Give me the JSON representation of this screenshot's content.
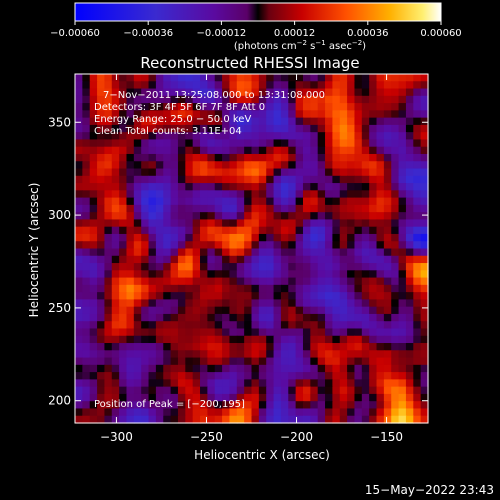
{
  "chart_data": {
    "type": "heatmap",
    "title": "Reconstructed RHESSI Image",
    "xlabel": "Heliocentric X (arcsec)",
    "ylabel": "Heliocentric Y (arcsec)",
    "xlim": [
      -323,
      -127
    ],
    "ylim": [
      188,
      376
    ],
    "xticks": [
      -300,
      -250,
      -200,
      -150
    ],
    "xtick_labels": [
      "−300",
      "−250",
      "−200",
      "−150"
    ],
    "yticks": [
      200,
      250,
      300,
      350
    ],
    "ytick_labels": [
      "200",
      "250",
      "300",
      "350"
    ],
    "colorbar": {
      "range": [
        -0.0006,
        0.0006
      ],
      "tick_values": [
        -0.0006,
        -0.00036,
        -0.00012,
        0.00012,
        0.00036,
        0.0006
      ],
      "tick_labels": [
        "−0.00060",
        "−0.00036",
        "−0.00012",
        "0.00012",
        "0.00036",
        "0.00060"
      ],
      "unit_prefix": "(photons cm",
      "unit_exp1": "−2",
      "unit_mid": " s",
      "unit_exp2": "−1",
      "unit_mid2": " asec",
      "unit_exp3": "−2",
      "unit_suffix": ")"
    },
    "annotations": {
      "time_range": "7−Nov−2011 13:25:08.000 to 13:31:08.000",
      "detectors": "Detectors: 3F 4F 5F 6F 7F 8F Att 0",
      "energy": "Energy Range: 25.0 − 50.0 keV",
      "clean": "Clean     Total counts: 3.11E+04",
      "peak": "Position of Peak = [−200,195]"
    },
    "peak_position": [
      -200,
      195
    ],
    "grid": false
  },
  "footer": {
    "timestamp": "15−May−2022 23:43"
  }
}
